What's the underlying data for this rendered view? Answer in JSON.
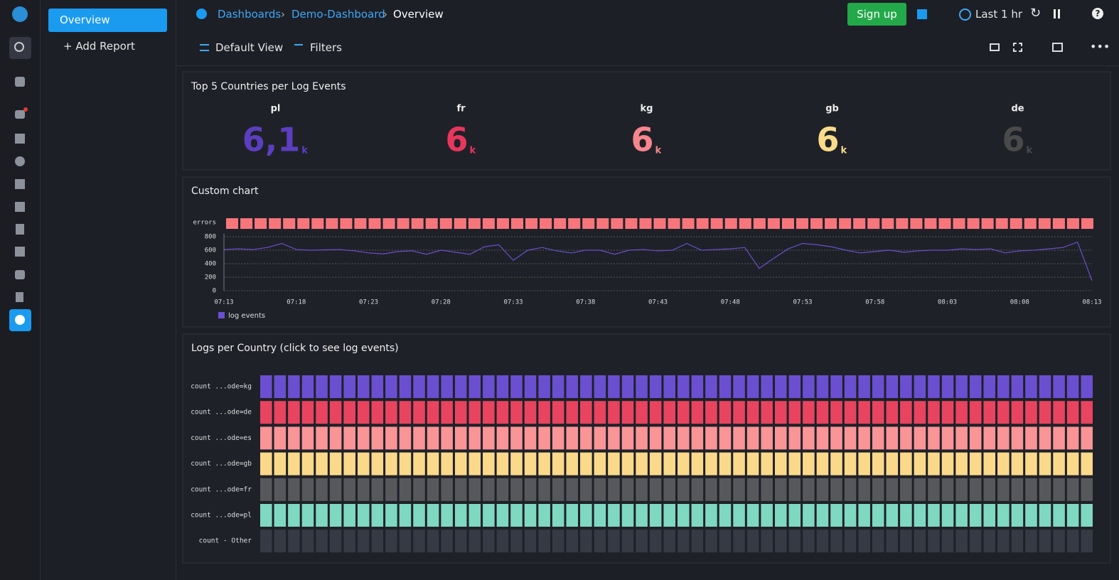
{
  "sidebar": {
    "active": "Overview",
    "add_report": "Add Report"
  },
  "breadcrumb": [
    "Dashboards",
    "Demo-Dashboard",
    "Overview"
  ],
  "toolbar": {
    "sign_up": "Sign up",
    "time_range": "Last 1 hr",
    "view": "Default View",
    "filters": "Filters"
  },
  "chart_data": [
    {
      "type": "stat",
      "title": "Top 5 Countries per Log Events",
      "categories": [
        "pl",
        "fr",
        "kg",
        "gb",
        "de"
      ],
      "values": [
        6.1,
        6,
        6,
        6,
        6
      ],
      "value_labels": [
        "6,1",
        "6",
        "6",
        "6",
        "6"
      ],
      "unit": "k",
      "colors": [
        "#5b3fc0",
        "#e8365d",
        "#f7868c",
        "#fadb8a",
        "#4a4a4a"
      ]
    },
    {
      "type": "line",
      "title": "Custom chart",
      "categories": [
        "07:13",
        null,
        null,
        null,
        null,
        "07:18",
        null,
        null,
        null,
        null,
        "07:23",
        null,
        null,
        null,
        null,
        "07:28",
        null,
        null,
        null,
        null,
        "07:33",
        null,
        null,
        null,
        null,
        "07:38",
        null,
        null,
        null,
        null,
        "07:43",
        null,
        null,
        null,
        null,
        "07:48",
        null,
        null,
        null,
        null,
        "07:53",
        null,
        null,
        null,
        null,
        "07:58",
        null,
        null,
        null,
        null,
        "08:03",
        null,
        null,
        null,
        null,
        "08:08",
        null,
        null,
        null,
        null,
        "08:13"
      ],
      "series": [
        {
          "name": "log events",
          "color": "#6a4fd0",
          "values": [
            610,
            620,
            610,
            640,
            700,
            610,
            600,
            605,
            610,
            590,
            560,
            545,
            580,
            590,
            540,
            600,
            570,
            540,
            650,
            680,
            450,
            600,
            640,
            590,
            560,
            600,
            600,
            540,
            600,
            610,
            590,
            600,
            700,
            600,
            610,
            620,
            640,
            330,
            480,
            620,
            700,
            680,
            650,
            600,
            560,
            580,
            600,
            570,
            590,
            600,
            600,
            620,
            610,
            620,
            560,
            590,
            600,
            620,
            640,
            720,
            150
          ]
        }
      ],
      "ylim": [
        0,
        800
      ],
      "yticks": [
        0,
        200,
        400,
        600,
        800
      ],
      "grid": true,
      "errors_label": "errors",
      "errors_color": "#f7767c"
    },
    {
      "type": "heatmap",
      "title": "Logs per Country (click to see log events)",
      "rows": [
        {
          "name": "count ...ode=kg",
          "color": "#6a4fd0"
        },
        {
          "name": "count ...ode=de",
          "color": "#e8445f"
        },
        {
          "name": "count ...ode=es",
          "color": "#f99497"
        },
        {
          "name": "count ...ode=gb",
          "color": "#fbd98a"
        },
        {
          "name": "count ...ode=fr",
          "color": "#56585c"
        },
        {
          "name": "count ...ode=pl",
          "color": "#7fd8c0"
        },
        {
          "name": "count - Other",
          "color": "#363a44"
        }
      ]
    }
  ]
}
